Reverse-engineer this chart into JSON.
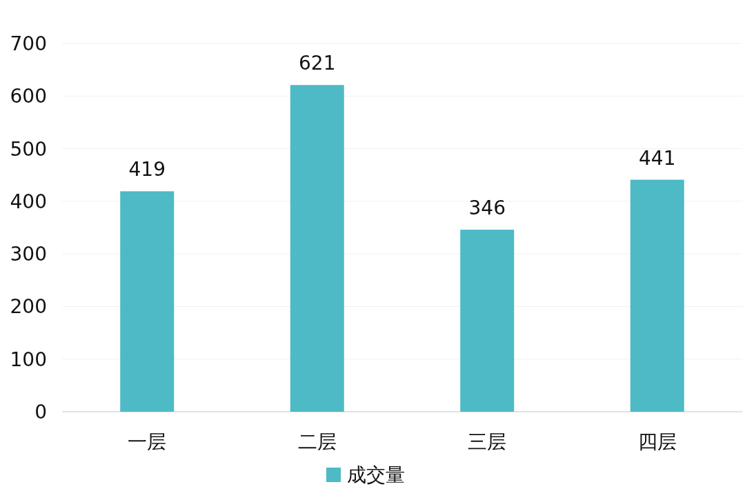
{
  "chart_data": {
    "type": "bar",
    "categories": [
      "一层",
      "二层",
      "三层",
      "四层"
    ],
    "series": [
      {
        "name": "成交量",
        "color": "#4dbac6",
        "values": [
          419,
          621,
          346,
          441
        ]
      }
    ],
    "ylim": [
      0,
      700
    ],
    "yticks": [
      0,
      100,
      200,
      300,
      400,
      500,
      600,
      700
    ],
    "grid": "y",
    "legend": "bottom",
    "data_labels": true
  }
}
